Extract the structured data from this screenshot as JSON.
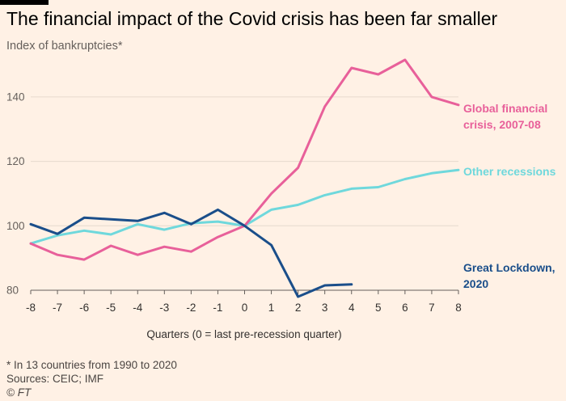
{
  "title": "The financial impact of the Covid crisis has been far smaller",
  "subtitle": "Index of bankruptcies*",
  "footnote": "* In 13 countries from 1990 to 2020",
  "source": "Sources: CEIC; IMF",
  "brand": "© FT",
  "chart_data": {
    "type": "line",
    "xlabel": "Quarters (0 = last pre-recession quarter)",
    "ylabel": "",
    "xlim": [
      -8,
      8
    ],
    "ylim": [
      78,
      152
    ],
    "x_ticks": [
      -8,
      -7,
      -6,
      -5,
      -4,
      -3,
      -2,
      -1,
      0,
      1,
      2,
      3,
      4,
      5,
      6,
      7,
      8
    ],
    "y_ticks": [
      80,
      100,
      120,
      140
    ],
    "grid": true,
    "series": [
      {
        "name": "Global financial crisis, 2007-08",
        "label_lines": [
          "Global financial",
          "crisis, 2007-08"
        ],
        "color": "#e8609a",
        "x": [
          -8,
          -7,
          -6,
          -5,
          -4,
          -3,
          -2,
          -1,
          0,
          1,
          2,
          3,
          4,
          5,
          6,
          7,
          8
        ],
        "values": [
          94.5,
          91,
          89.5,
          93.8,
          91,
          93.5,
          92,
          96.5,
          100,
          110,
          118,
          137,
          149,
          147,
          151.5,
          140,
          137.5
        ]
      },
      {
        "name": "Other recessions",
        "label_lines": [
          "Other recessions"
        ],
        "color": "#6fd8dc",
        "x": [
          -8,
          -7,
          -6,
          -5,
          -4,
          -3,
          -2,
          -1,
          0,
          1,
          2,
          3,
          4,
          5,
          6,
          7,
          8
        ],
        "values": [
          94.5,
          97,
          98.5,
          97.3,
          100.5,
          98.8,
          100.8,
          101.3,
          100,
          105,
          106.5,
          109.5,
          111.5,
          112,
          114.5,
          116.3,
          117.3
        ]
      },
      {
        "name": "Great Lockdown, 2020",
        "label_lines": [
          "Great Lockdown,",
          "2020"
        ],
        "color": "#1a4e8a",
        "x": [
          -8,
          -7,
          -6,
          -5,
          -4,
          -3,
          -2,
          -1,
          0,
          1,
          2,
          3,
          4
        ],
        "values": [
          100.5,
          97.5,
          102.5,
          102,
          101.5,
          104,
          100.5,
          105,
          100,
          94,
          78,
          81.5,
          81.8
        ]
      }
    ]
  }
}
